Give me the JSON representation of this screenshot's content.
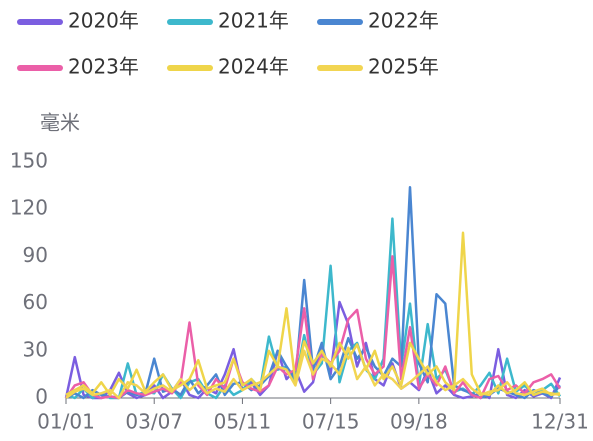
{
  "chart_data": {
    "type": "line",
    "y_label": "毫米",
    "categories": [
      "01/01",
      null,
      null,
      null,
      null,
      null,
      null,
      null,
      null,
      null,
      "03/07",
      null,
      null,
      null,
      null,
      null,
      null,
      null,
      null,
      null,
      "05/11",
      null,
      null,
      null,
      null,
      null,
      null,
      null,
      null,
      null,
      "07/15",
      null,
      null,
      null,
      null,
      null,
      null,
      null,
      null,
      null,
      "09/18",
      null,
      null,
      null,
      null,
      null,
      null,
      null,
      null,
      null,
      null,
      null,
      null,
      null,
      null,
      null,
      "12/31"
    ],
    "ylim": [
      0,
      150
    ],
    "yticks": [
      0,
      30,
      60,
      90,
      120,
      150
    ],
    "series": [
      {
        "name": "2020年",
        "color": "#7b5ee0",
        "values": [
          0,
          26,
          2,
          0,
          0,
          5,
          16,
          3,
          0,
          2,
          8,
          0,
          4,
          12,
          2,
          0,
          6,
          3,
          15,
          31,
          5,
          10,
          2,
          8,
          30,
          12,
          18,
          4,
          10,
          33,
          15,
          61,
          47,
          20,
          35,
          12,
          8,
          22,
          6,
          10,
          5,
          18,
          3,
          8,
          2,
          0,
          1,
          3,
          0,
          31,
          2,
          0,
          5,
          1,
          3,
          0,
          13
        ]
      },
      {
        "name": "2021年",
        "color": "#3db8cc",
        "values": [
          2,
          0,
          6,
          0,
          3,
          0,
          0,
          22,
          2,
          4,
          3,
          15,
          6,
          0,
          10,
          12,
          3,
          0,
          8,
          2,
          5,
          12,
          6,
          39,
          18,
          20,
          10,
          40,
          15,
          22,
          84,
          10,
          30,
          35,
          18,
          12,
          25,
          114,
          20,
          60,
          8,
          47,
          12,
          18,
          4,
          6,
          2,
          8,
          16,
          3,
          25,
          4,
          8,
          2,
          5,
          9,
          1
        ]
      },
      {
        "name": "2022年",
        "color": "#4a86d1",
        "values": [
          0,
          3,
          0,
          5,
          2,
          1,
          0,
          4,
          2,
          3,
          25,
          4,
          6,
          2,
          12,
          3,
          8,
          15,
          2,
          9,
          10,
          5,
          8,
          14,
          30,
          20,
          12,
          75,
          18,
          35,
          12,
          20,
          38,
          25,
          32,
          20,
          14,
          25,
          20,
          134,
          22,
          10,
          66,
          60,
          8,
          5,
          3,
          0,
          2,
          6,
          4,
          2,
          0,
          5,
          3,
          1,
          8
        ]
      },
      {
        "name": "2023年",
        "color": "#eb5fa8",
        "values": [
          0,
          8,
          10,
          2,
          0,
          1,
          0,
          5,
          3,
          2,
          4,
          6,
          3,
          10,
          48,
          8,
          2,
          12,
          6,
          25,
          10,
          6,
          4,
          8,
          20,
          15,
          18,
          57,
          12,
          28,
          22,
          30,
          50,
          56,
          25,
          15,
          20,
          90,
          12,
          45,
          6,
          15,
          8,
          20,
          3,
          10,
          2,
          0,
          12,
          14,
          5,
          8,
          3,
          10,
          12,
          15,
          6
        ]
      },
      {
        "name": "2024年",
        "color": "#efd54a",
        "values": [
          2,
          5,
          8,
          3,
          10,
          2,
          12,
          6,
          18,
          4,
          10,
          15,
          5,
          8,
          12,
          24,
          6,
          8,
          10,
          25,
          8,
          12,
          5,
          30,
          20,
          57,
          10,
          36,
          22,
          30,
          20,
          35,
          25,
          34,
          18,
          30,
          12,
          20,
          8,
          35,
          25,
          15,
          20,
          10,
          5,
          105,
          15,
          3,
          2,
          8,
          3,
          5,
          10,
          2,
          4,
          3,
          2
        ]
      },
      {
        "name": "2025年",
        "color": "#f2d552",
        "values": [
          0,
          4,
          6,
          2,
          3,
          5,
          0,
          10,
          8,
          3,
          6,
          8,
          4,
          12,
          5,
          10,
          3,
          6,
          4,
          12,
          5,
          8,
          10,
          15,
          20,
          18,
          8,
          30,
          15,
          25,
          22,
          15,
          32,
          12,
          20,
          8,
          15,
          12,
          6,
          10,
          15,
          20,
          10,
          5,
          8,
          12,
          6,
          2,
          4,
          5,
          10,
          3,
          2,
          4,
          6,
          2,
          3
        ]
      }
    ]
  }
}
